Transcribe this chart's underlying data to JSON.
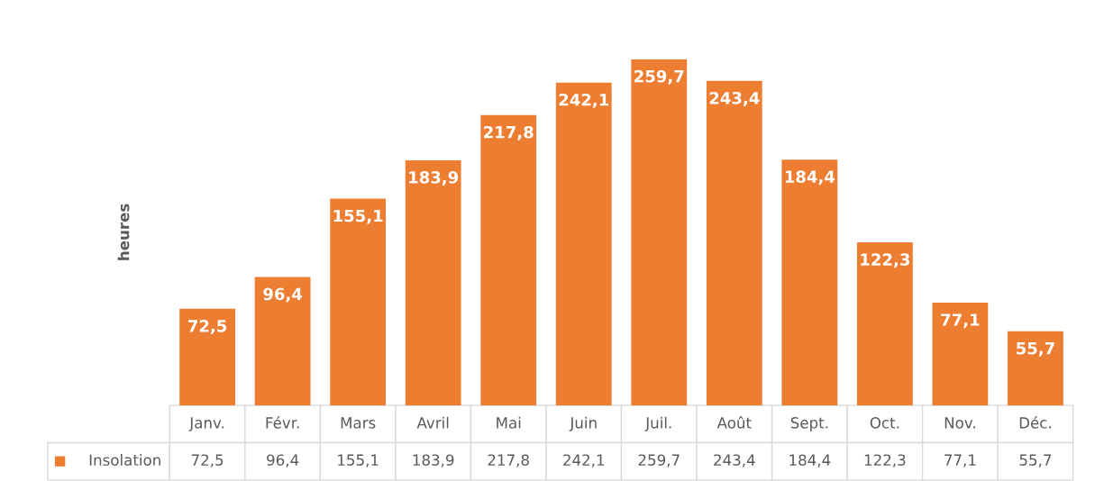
{
  "chart_data": {
    "type": "bar",
    "ylabel": "heures",
    "categories": [
      "Janv.",
      "Févr.",
      "Mars",
      "Avril",
      "Mai",
      "Juin",
      "Juil.",
      "Août",
      "Sept.",
      "Oct.",
      "Nov.",
      "Déc."
    ],
    "series": [
      {
        "name": "Insolation",
        "color": "#ed7d31",
        "values": [
          72.5,
          96.4,
          155.1,
          183.9,
          217.8,
          242.1,
          259.7,
          243.4,
          184.4,
          122.3,
          77.1,
          55.7
        ],
        "value_labels": [
          "72,5",
          "96,4",
          "155,1",
          "183,9",
          "217,8",
          "242,1",
          "259,7",
          "243,4",
          "184,4",
          "122,3",
          "77,1",
          "55,7"
        ]
      }
    ],
    "legend": "bottom left"
  }
}
